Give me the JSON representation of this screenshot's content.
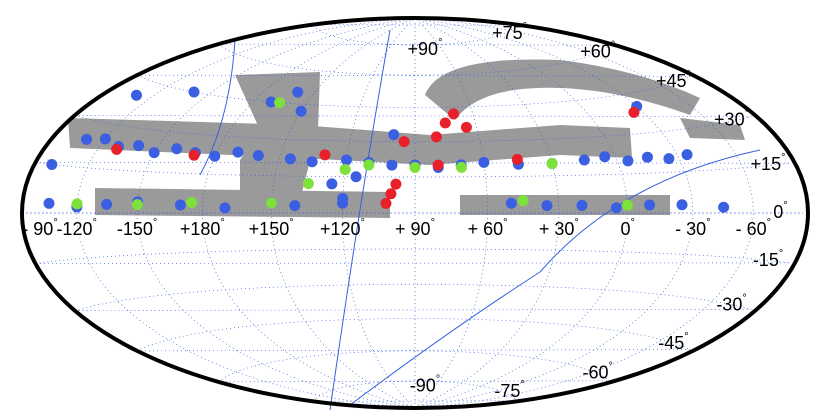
{
  "chart_data": {
    "type": "sky-map",
    "projection": "hammer",
    "degree": "°",
    "lon_ticks": [
      {
        "value": -90,
        "label": "- 90"
      },
      -120,
      -150,
      {
        "value": 180,
        "label": "+180"
      },
      {
        "value": 150,
        "label": "+150"
      },
      {
        "value": 120,
        "label": "+120"
      },
      {
        "value": 90,
        "label": "+ 90"
      },
      {
        "value": 60,
        "label": "+ 60"
      },
      {
        "value": 30,
        "label": "+ 30"
      },
      0,
      {
        "value": -30,
        "label": "- 30"
      },
      {
        "value": -60,
        "label": "- 60"
      }
    ],
    "lat_ticks": [
      {
        "value": 90,
        "label": "+90"
      },
      {
        "value": 75,
        "label": "+75"
      },
      {
        "value": 60,
        "label": "+60"
      },
      {
        "value": 45,
        "label": "+45"
      },
      {
        "value": 30,
        "label": "+30"
      },
      {
        "value": 15,
        "label": "+15"
      },
      0,
      -15,
      -30,
      -45,
      -60,
      -75,
      -90
    ],
    "grid": true,
    "series": [
      {
        "color": "#3a5fe0",
        "lon": [
          250,
          240,
          230,
          220,
          210,
          200,
          190,
          180,
          170,
          160,
          145,
          135,
          120,
          110,
          100,
          90,
          80,
          70,
          60,
          45,
          30,
          15,
          5,
          -5,
          -15,
          -25,
          -35,
          255,
          240,
          225,
          210,
          190,
          170,
          150,
          140,
          120,
          50,
          35,
          20,
          5,
          -10,
          -25,
          -45,
          220,
          170,
          160,
          150,
          125,
          120,
          115,
          -30,
          260,
          100,
          250
        ],
        "lat": [
          24,
          25,
          23,
          24,
          22,
          24,
          23,
          22,
          24,
          23,
          22,
          21,
          22,
          21,
          20,
          20,
          19,
          20,
          21,
          20,
          20,
          21,
          22,
          20,
          21,
          20,
          21,
          3,
          2,
          3,
          4,
          3,
          2,
          4,
          3,
          4,
          4,
          3,
          3,
          2,
          3,
          3,
          2,
          45,
          45,
          50,
          42,
          12,
          6,
          15,
          40,
          15,
          33,
          40
        ]
      },
      {
        "color": "#e8202a",
        "lon": [
          75,
          70,
          65,
          80,
          100,
          102,
          98,
          -25,
          230,
          190,
          130,
          80,
          45,
          95
        ],
        "lat": [
          38,
          42,
          36,
          32,
          8,
          4,
          12,
          38,
          22,
          22,
          24,
          20,
          22,
          30
        ]
      },
      {
        "color": "#7ee03a",
        "lon": [
          240,
          210,
          185,
          150,
          120,
          110,
          90,
          70,
          45,
          30,
          165,
          135,
          0
        ],
        "lat": [
          3,
          3,
          4,
          4,
          18,
          20,
          19,
          19,
          5,
          20,
          45,
          12,
          3
        ]
      }
    ]
  }
}
